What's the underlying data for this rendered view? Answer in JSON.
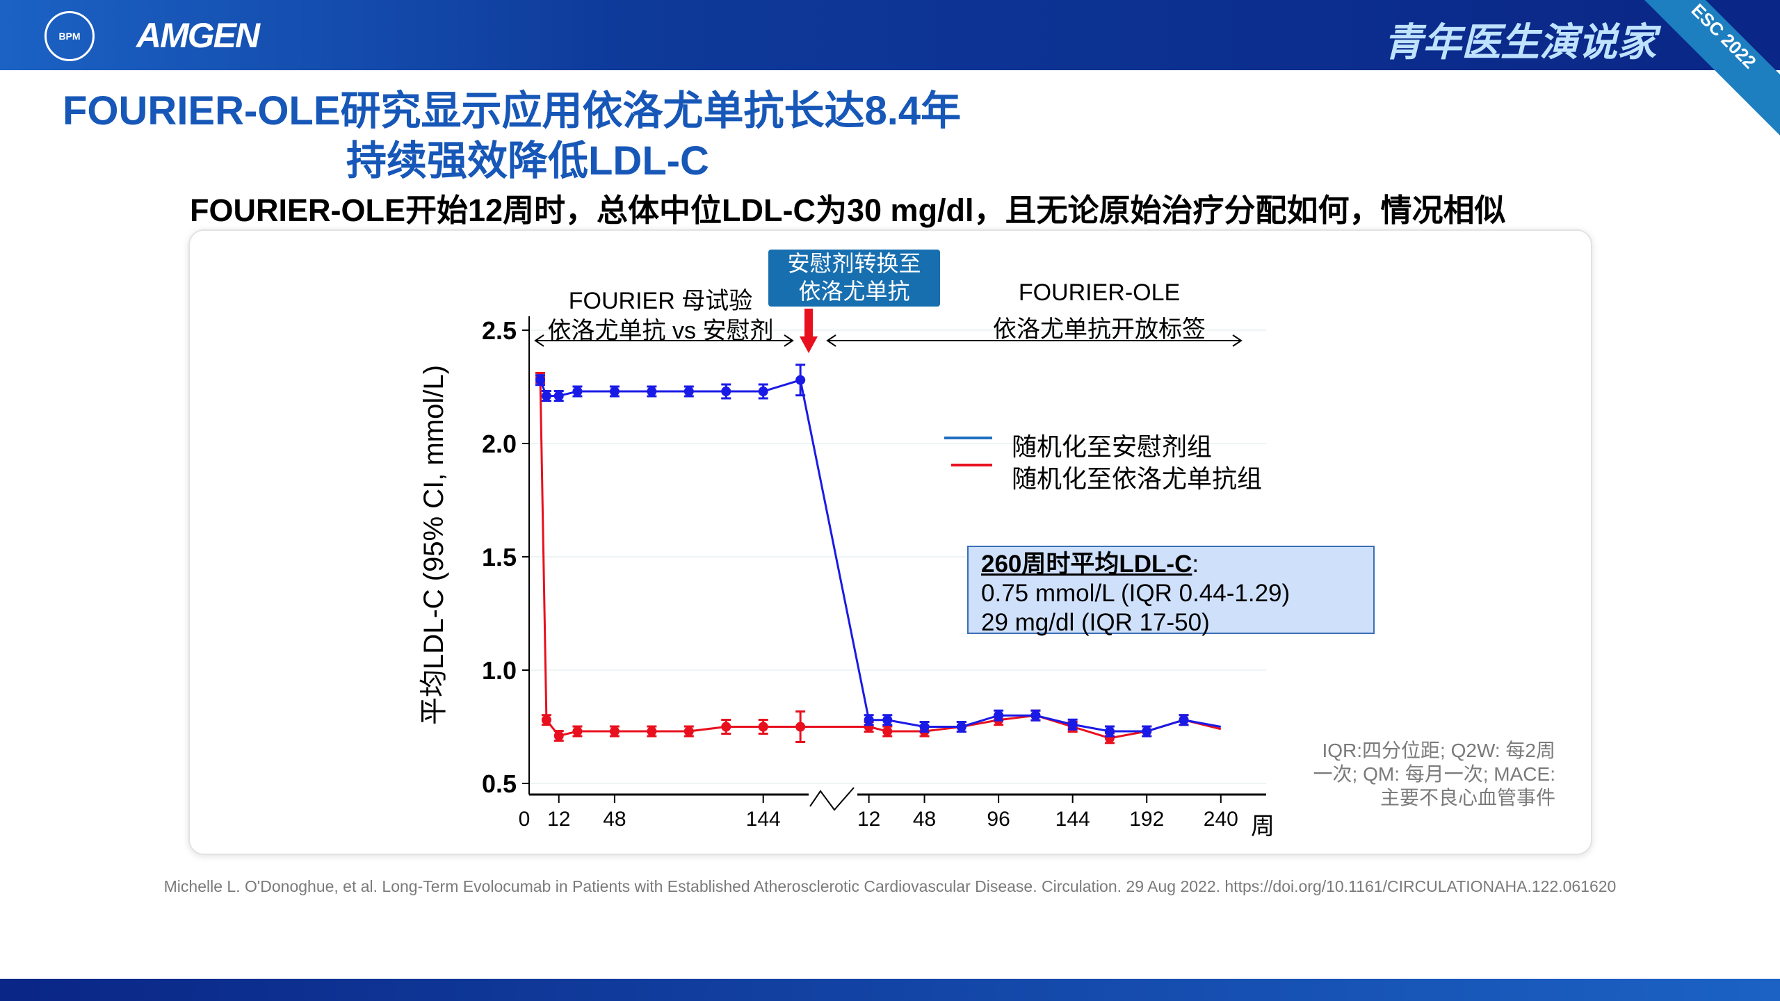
{
  "header": {
    "logo_bpm": "BPM",
    "logo_amgen": "AMGEN",
    "slogan": "青年医生演说家",
    "badge": "ESC 2022"
  },
  "title": {
    "line1": "FOURIER-OLE研究显示应用依洛尤单抗长达8.4年",
    "line2": "持续强效降低LDL-C"
  },
  "subtitle": "FOURIER-OLE开始12周时，总体中位LDL-C为30 mg/dl，且无论原始治疗分配如何，情况相似",
  "annotations": {
    "parent_l1": "FOURIER 母试验",
    "parent_l2": "依洛尤单抗 vs 安慰剂",
    "switch_l1": "安慰剂转换至",
    "switch_l2": "依洛尤单抗",
    "ole_l1": "FOURIER-OLE",
    "ole_l2": "依洛尤单抗开放标签"
  },
  "infobox": {
    "heading": "260周时平均LDL-C",
    "colon": ":",
    "line1": "0.75 mmol/L (IQR 0.44-1.29)",
    "line2": "29 mg/dl (IQR 17-50)"
  },
  "footnote": {
    "l1": "IQR:四分位距; Q2W: 每2周",
    "l2": "一次; QM: 每月一次; MACE:",
    "l3": "主要不良心血管事件"
  },
  "citation": "Michelle L. O'Donoghue, et al. Long-Term Evolocumab in Patients with Established Atherosclerotic Cardiovascular Disease. Circulation. 29 Aug 2022. https://doi.org/10.1161/CIRCULATIONAHA.122.061620",
  "colors": {
    "placebo": "#1a1ae6",
    "evolocumab": "#e8101e",
    "legend_placebo": "#1f6fc0"
  },
  "chart_data": {
    "type": "line",
    "ylabel": "平均LDL-C (95% CI, mmol/L)",
    "xlabel": "周",
    "ylim": [
      0.5,
      2.5
    ],
    "yticks": [
      "0.5",
      "1.0",
      "1.5",
      "2.0",
      "2.5"
    ],
    "xticks_parent": [
      "0",
      "12",
      "48",
      "144"
    ],
    "xticks_ole": [
      "12",
      "48",
      "96",
      "144",
      "192",
      "240"
    ],
    "legend": [
      "随机化至安慰剂组",
      "随机化至依洛尤单抗组"
    ],
    "parent_weeks": [
      0,
      4,
      12,
      24,
      48,
      72,
      96,
      120,
      144,
      168
    ],
    "ole_weeks": [
      12,
      24,
      48,
      72,
      96,
      120,
      144,
      168,
      192,
      216,
      240
    ],
    "series": [
      {
        "name": "随机化至安慰剂组",
        "parent": [
          2.28,
          2.21,
          2.21,
          2.23,
          2.23,
          2.23,
          2.23,
          2.23,
          2.23,
          2.28
        ],
        "ole": [
          0.78,
          0.78,
          0.75,
          0.75,
          0.8,
          0.8,
          0.76,
          0.73,
          0.73,
          0.78,
          0.75
        ]
      },
      {
        "name": "随机化至依洛尤单抗组",
        "parent": [
          2.29,
          0.78,
          0.71,
          0.73,
          0.73,
          0.73,
          0.73,
          0.75,
          0.75,
          0.75
        ],
        "ole": [
          0.75,
          0.73,
          0.73,
          0.75,
          0.78,
          0.8,
          0.75,
          0.7,
          0.73,
          0.78,
          0.74
        ]
      }
    ]
  }
}
